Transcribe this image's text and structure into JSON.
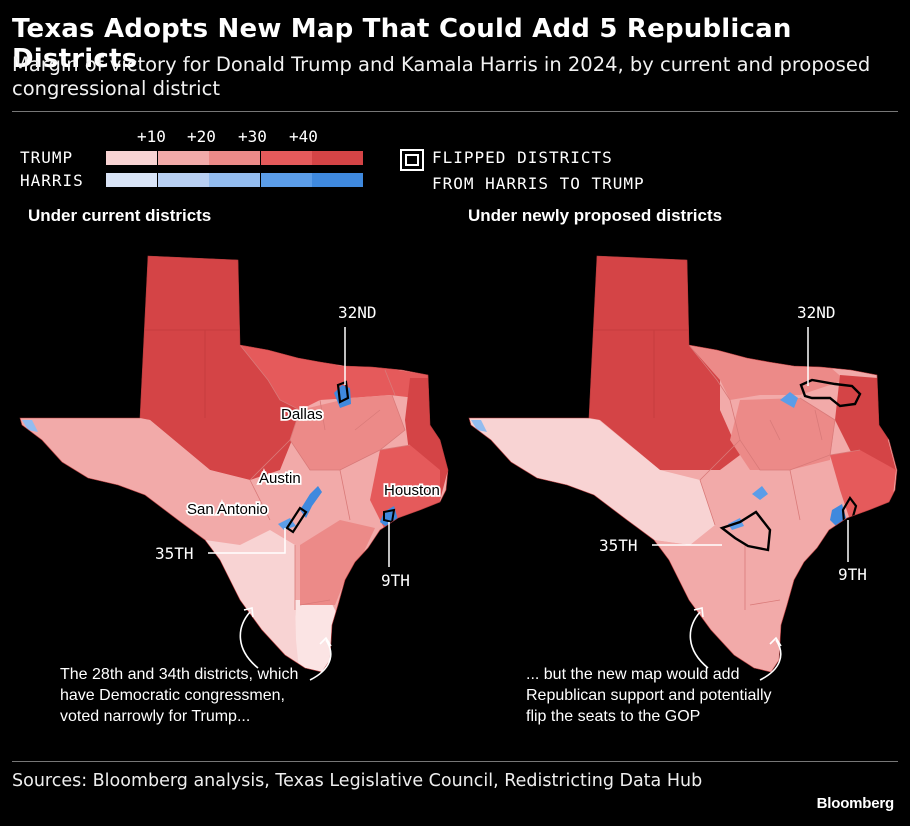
{
  "title": "Texas Adopts New Map That Could Add 5 Republican Districts",
  "subtitle": "Margin of victory for Donald Trump and Kamala Harris in 2024, by current and proposed congressional district",
  "legend": {
    "ticks": [
      "+10",
      "+20",
      "+30",
      "+40"
    ],
    "trump_label": "TRUMP",
    "harris_label": "HARRIS",
    "trump_colors": [
      "#f8d3d3",
      "#f2aaa9",
      "#ec8a88",
      "#e55a5b",
      "#d44446"
    ],
    "harris_colors": [
      "#d9e4f7",
      "#b9d0f3",
      "#93bcef",
      "#5b9de8",
      "#3f89de"
    ],
    "flipped_line1": "FLIPPED DISTRICTS",
    "flipped_line2": "FROM HARRIS TO TRUMP"
  },
  "panels": [
    {
      "title": "Under current districts",
      "labels": {
        "d32": "32ND",
        "dallas": "Dallas",
        "austin": "Austin",
        "houston": "Houston",
        "san_antonio": "San Antonio",
        "d35": "35TH",
        "d9": "9TH"
      },
      "note": "The 28th and 34th districts, which have Democratic congressmen, voted narrowly for Trump..."
    },
    {
      "title": "Under newly proposed districts",
      "labels": {
        "d32": "32ND",
        "d35": "35TH",
        "d9": "9TH"
      },
      "note": "... but the new map would add Republican support and potentially flip the seats to the GOP"
    }
  ],
  "sources": "Sources: Bloomberg analysis, Texas Legislative Council, Redistricting Data Hub",
  "brand": "Bloomberg"
}
